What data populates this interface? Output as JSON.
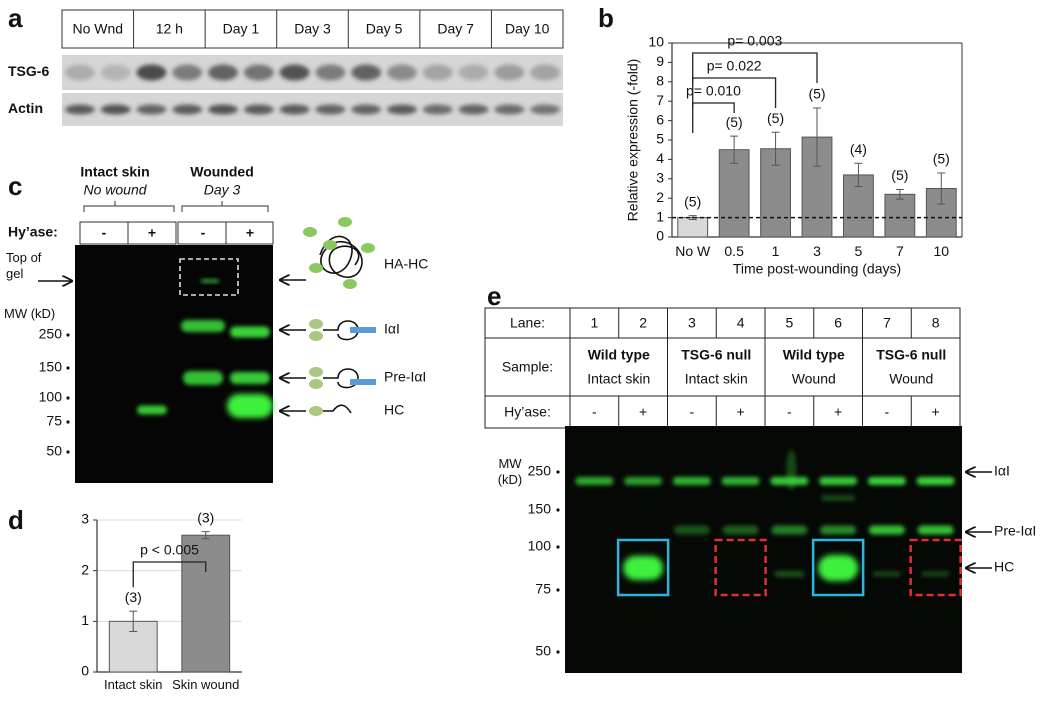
{
  "panel_a": {
    "label": "a",
    "columns": [
      "No Wnd",
      "12 h",
      "Day 1",
      "Day 3",
      "Day 5",
      "Day 7",
      "Day 10"
    ],
    "rows": [
      "TSG-6",
      "Actin"
    ]
  },
  "panel_c": {
    "label": "c",
    "groups": [
      {
        "title": "Intact skin",
        "subtitle": "No wound"
      },
      {
        "title": "Wounded",
        "subtitle": "Day 3"
      }
    ],
    "hyase_label": "Hy’ase:",
    "hyase": [
      "-",
      "+",
      "-",
      "+"
    ],
    "top_of_gel": "Top of gel",
    "mw_label": "MW (kD)",
    "mw": [
      250,
      150,
      100,
      75,
      50
    ],
    "bands": [
      "HA-HC",
      "IαI",
      "Pre-IαI",
      "HC"
    ]
  },
  "panel_e": {
    "label": "e",
    "table": {
      "lane_label": "Lane:",
      "lanes": [
        1,
        2,
        3,
        4,
        5,
        6,
        7,
        8
      ],
      "sample_label": "Sample:",
      "samples": [
        {
          "genotype": "Wild type",
          "tissue": "Intact skin"
        },
        {
          "genotype": "TSG-6 null",
          "tissue": "Intact skin"
        },
        {
          "genotype": "Wild type",
          "tissue": "Wound"
        },
        {
          "genotype": "TSG-6 null",
          "tissue": "Wound"
        }
      ],
      "hyase_label": "Hy’ase:",
      "hyase": [
        "-",
        "+",
        "-",
        "+",
        "-",
        "+",
        "-",
        "+"
      ]
    },
    "mw_label": "MW (kD)",
    "mw": [
      250,
      150,
      100,
      75,
      50
    ],
    "bands": [
      "IαI",
      "Pre-IαI",
      "HC"
    ]
  },
  "chart_data": [
    {
      "type": "bar",
      "panel_label": "b",
      "y_label": "Relative expression (-fold)",
      "x_label": "Time post-wounding (days)",
      "categories": [
        "No W",
        "0.5",
        "1",
        "3",
        "5",
        "7",
        "10"
      ],
      "values": [
        1,
        4.5,
        4.55,
        5.15,
        3.2,
        2.2,
        2.5
      ],
      "errors": [
        0.1,
        0.7,
        0.85,
        1.5,
        0.6,
        0.25,
        0.8
      ],
      "n_labels": [
        "(5)",
        "(5)",
        "(5)",
        "(5)",
        "(4)",
        "(5)",
        "(5)"
      ],
      "colors": [
        "#d9d9d9",
        "#8c8c8c",
        "#8c8c8c",
        "#8c8c8c",
        "#8c8c8c",
        "#8c8c8c",
        "#8c8c8c"
      ],
      "ylim": [
        0,
        10
      ],
      "yticks": [
        0,
        1,
        2,
        3,
        4,
        5,
        6,
        7,
        8,
        9,
        10
      ],
      "grid": false,
      "reference_line": 1,
      "comparisons": [
        {
          "label": "p= 0.010",
          "from": 0,
          "to": 1
        },
        {
          "label": "p= 0.022",
          "from": 0,
          "to": 2
        },
        {
          "label": "p= 0.003",
          "from": 0,
          "to": 3
        }
      ]
    },
    {
      "type": "bar",
      "panel_label": "d",
      "categories": [
        "Intact skin",
        "Skin wound"
      ],
      "values": [
        1,
        2.7
      ],
      "errors": [
        0.2,
        0.07
      ],
      "n_labels": [
        "(3)",
        "(3)"
      ],
      "colors": [
        "#d9d9d9",
        "#8c8c8c"
      ],
      "ylim": [
        0,
        3
      ],
      "yticks": [
        0,
        1,
        2,
        3
      ],
      "grid": true,
      "comparisons": [
        {
          "label": "p < 0.005",
          "from": 0,
          "to": 1
        }
      ]
    }
  ]
}
